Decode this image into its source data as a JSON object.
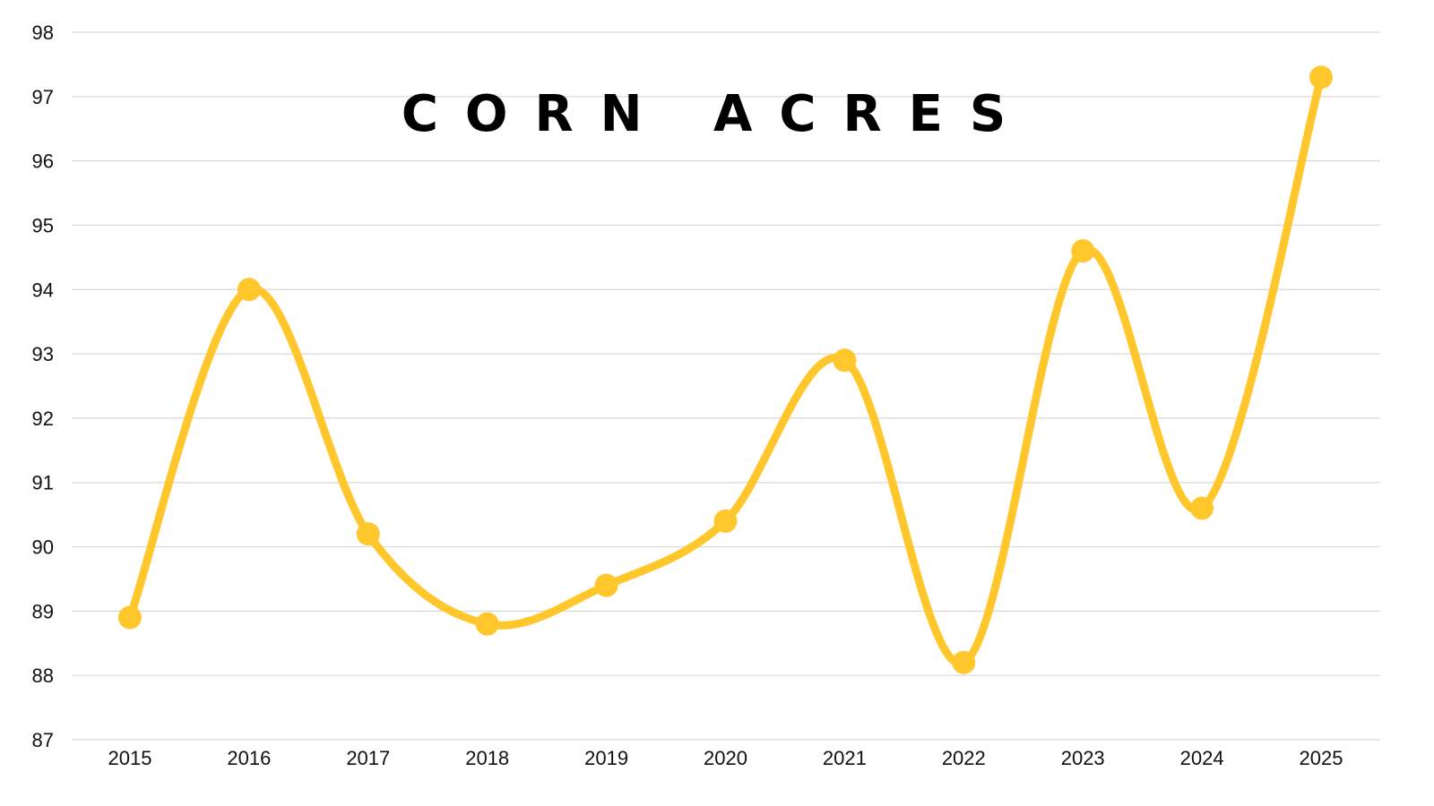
{
  "chart_data": {
    "type": "line",
    "title": "CORN ACRES",
    "xlabel": "",
    "ylabel": "",
    "categories": [
      "2015",
      "2016",
      "2017",
      "2018",
      "2019",
      "2020",
      "2021",
      "2022",
      "2023",
      "2024",
      "2025"
    ],
    "series": [
      {
        "values": [
          88.9,
          94.0,
          90.2,
          88.8,
          89.4,
          90.4,
          92.9,
          88.2,
          94.6,
          90.6,
          97.3
        ]
      }
    ],
    "ylim": [
      87,
      98
    ],
    "yticks": [
      "87",
      "88",
      "89",
      "90",
      "91",
      "92",
      "93",
      "94",
      "95",
      "96",
      "97",
      "98"
    ],
    "smooth": true,
    "markers": true,
    "grid": true,
    "legend": "none",
    "colors": {
      "line": "#FFC72C",
      "grid": "#D9D9D9",
      "text": "#111111"
    }
  }
}
